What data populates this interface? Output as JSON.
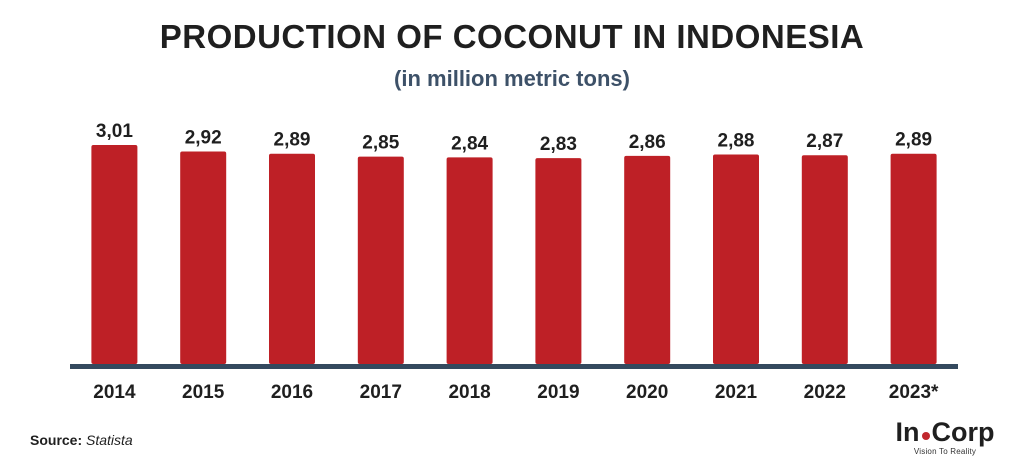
{
  "chart_data": {
    "type": "bar",
    "title": "PRODUCTION OF COCONUT IN INDONESIA",
    "subtitle": "(in million metric tons)",
    "categories": [
      "2014",
      "2015",
      "2016",
      "2017",
      "2018",
      "2019",
      "2020",
      "2021",
      "2022",
      "2023*"
    ],
    "values": [
      3.01,
      2.92,
      2.89,
      2.85,
      2.84,
      2.83,
      2.86,
      2.88,
      2.87,
      2.89
    ],
    "data_labels": [
      "3,01",
      "2,92",
      "2,89",
      "2,85",
      "2,84",
      "2,83",
      "2,86",
      "2,88",
      "2,87",
      "2,89"
    ],
    "ylim": [
      0,
      3.01
    ],
    "xlabel": "",
    "ylabel": "",
    "grid": false,
    "bar_color": "#be2026",
    "axis_color": "#34495e"
  },
  "footer": {
    "source_label": "Source:",
    "source_value": "Statista"
  },
  "logo": {
    "text_left": "In",
    "text_right": "Corp",
    "tagline": "Vision To Reality"
  }
}
